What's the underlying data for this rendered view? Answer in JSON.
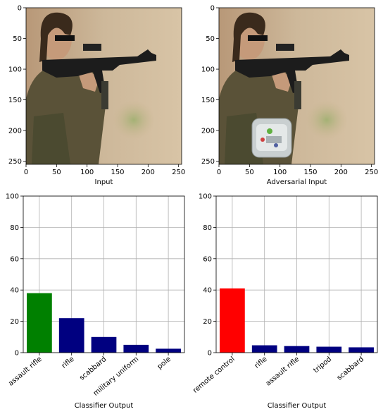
{
  "chart_data": [
    {
      "type": "image",
      "xlabel": "Input",
      "xticks": [
        0,
        50,
        100,
        150,
        200,
        250
      ],
      "yticks": [
        0,
        50,
        100,
        150,
        200,
        250
      ],
      "xlim": [
        0,
        255
      ],
      "ylim": [
        255,
        0
      ],
      "description": "photo of person aiming an assault rifle"
    },
    {
      "type": "image",
      "xlabel": "Adversarial Input",
      "xticks": [
        0,
        50,
        100,
        150,
        200,
        250
      ],
      "yticks": [
        0,
        50,
        100,
        150,
        200,
        250
      ],
      "xlim": [
        0,
        255
      ],
      "ylim": [
        255,
        0
      ],
      "description": "same photo with adversarial patch (toaster-like sticker) in lower left"
    },
    {
      "type": "bar",
      "xlabel": "Classifier Output",
      "ylabel": "",
      "ylim": [
        0,
        100
      ],
      "yticks": [
        0,
        20,
        40,
        60,
        80,
        100
      ],
      "grid": true,
      "categories": [
        "assault rifle",
        "rifle",
        "scabbard",
        "military uniform",
        "pole"
      ],
      "values": [
        38,
        22,
        10,
        5,
        2.5
      ],
      "colors": [
        "#008000",
        "#000080",
        "#000080",
        "#000080",
        "#000080"
      ]
    },
    {
      "type": "bar",
      "xlabel": "Classifier Output",
      "ylabel": "",
      "ylim": [
        0,
        100
      ],
      "yticks": [
        0,
        20,
        40,
        60,
        80,
        100
      ],
      "grid": true,
      "categories": [
        "remote control",
        "rifle",
        "assault rifle",
        "tripod",
        "scabbard"
      ],
      "values": [
        41,
        4.7,
        4.2,
        3.8,
        3.4
      ],
      "colors": [
        "#ff0000",
        "#000080",
        "#000080",
        "#000080",
        "#000080"
      ]
    }
  ]
}
